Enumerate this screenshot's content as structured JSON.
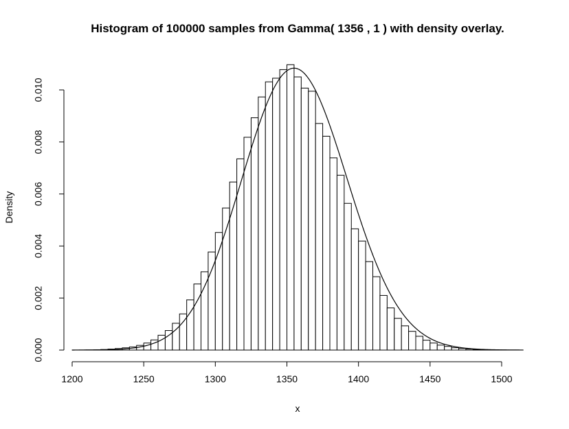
{
  "chart_data": {
    "type": "bar",
    "title": "Histogram of 100000 samples from Gamma( 1356 , 1 ) with density overlay.",
    "xlabel": "x",
    "ylabel": "Density",
    "xlim": [
      1200,
      1515
    ],
    "ylim": [
      0,
      0.011
    ],
    "x_ticks": [
      1200,
      1250,
      1300,
      1350,
      1400,
      1450,
      1500
    ],
    "x_tick_labels": [
      "1200",
      "1250",
      "1300",
      "1350",
      "1400",
      "1450",
      "1500"
    ],
    "y_ticks": [
      0,
      0.002,
      0.004,
      0.006,
      0.008,
      0.01
    ],
    "y_tick_labels": [
      "0.000",
      "0.002",
      "0.004",
      "0.006",
      "0.008",
      "0.010"
    ],
    "bin_width": 5,
    "bin_start": 1200,
    "values": [
      2e-06,
      4e-06,
      6e-06,
      1.2e-05,
      2.2e-05,
      3.8e-05,
      5.8e-05,
      8.6e-05,
      0.00012,
      0.00018,
      0.00027,
      0.00039,
      0.00057,
      0.00075,
      0.00103,
      0.00139,
      0.00193,
      0.00254,
      0.00301,
      0.00377,
      0.00452,
      0.00546,
      0.00646,
      0.00735,
      0.00818,
      0.00893,
      0.00973,
      0.01031,
      0.01045,
      0.01078,
      0.01097,
      0.0105,
      0.01007,
      0.00995,
      0.00871,
      0.00822,
      0.00739,
      0.00672,
      0.00564,
      0.00466,
      0.00419,
      0.0034,
      0.00282,
      0.0021,
      0.00162,
      0.00122,
      0.00093,
      0.00072,
      0.00053,
      0.00038,
      0.00027,
      0.00019,
      0.00014,
      9e-05,
      6e-05,
      3.8e-05,
      2.4e-05,
      1.4e-05,
      8e-06,
      5e-06,
      3e-06,
      2e-06,
      1e-06
    ],
    "density": {
      "distribution": "Gamma",
      "shape": 1356,
      "rate": 1
    },
    "grid": false,
    "legend": "none"
  }
}
